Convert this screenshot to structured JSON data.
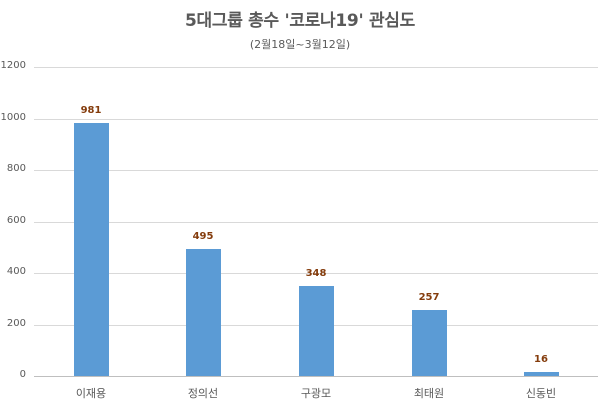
{
  "chart_data": {
    "type": "bar",
    "title": "5대그룹 총수 '코로나19' 관심도",
    "subtitle": "(2월18일~3월12일)",
    "categories": [
      "이재용",
      "정의선",
      "구광모",
      "최태원",
      "신동빈"
    ],
    "values": [
      981,
      495,
      348,
      257,
      16
    ],
    "data_labels": [
      "981",
      "495",
      "348",
      "257",
      "16"
    ],
    "xlabel": "",
    "ylabel": "",
    "ylim": [
      0,
      1200
    ],
    "yticks": [
      "0",
      "200",
      "400",
      "600",
      "800",
      "1000",
      "1200"
    ],
    "grid": true,
    "legend": null,
    "colors": {
      "bar": "#5b9bd5",
      "data_label": "#843c0c",
      "grid": "#d9d9d9",
      "text": "#595959"
    }
  }
}
